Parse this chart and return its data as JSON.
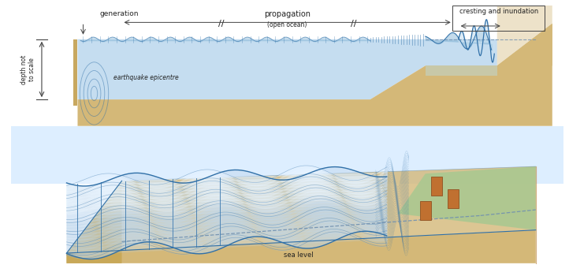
{
  "bg_color": "#ffffff",
  "ocean_deep_color": "#b8d4e8",
  "ocean_deep_fill": "#c5ddf0",
  "ocean_shallow_color": "#c8e0f0",
  "wave_line_color": "#3070a8",
  "wave_fill_color": "#8ab8d8",
  "seafloor_color": "#d4b878",
  "seafloor_dark": "#c8a860",
  "shelf_top_color": "#c8c8a8",
  "land_slope_color": "#d4b878",
  "land_top_color": "#c8c8a0",
  "dashed_color": "#7090b0",
  "text_color": "#222222",
  "arrow_color": "#444444",
  "sky_color": "#ddeeff",
  "water_3d_color": "#c0d8ee",
  "water_3d_white": "#e8f4ff",
  "building_color": "#c07030",
  "building_edge": "#905020",
  "green_shelf": "#a8c890",
  "label_generation": "generation",
  "label_propagation": "propagation",
  "label_propagation2": "(open ocean)",
  "label_cresting": "cresting and inundation",
  "label_depth": "depth not\nto scale",
  "label_epicentre": "earthquake epicentre",
  "label_sealevel": "sea level"
}
